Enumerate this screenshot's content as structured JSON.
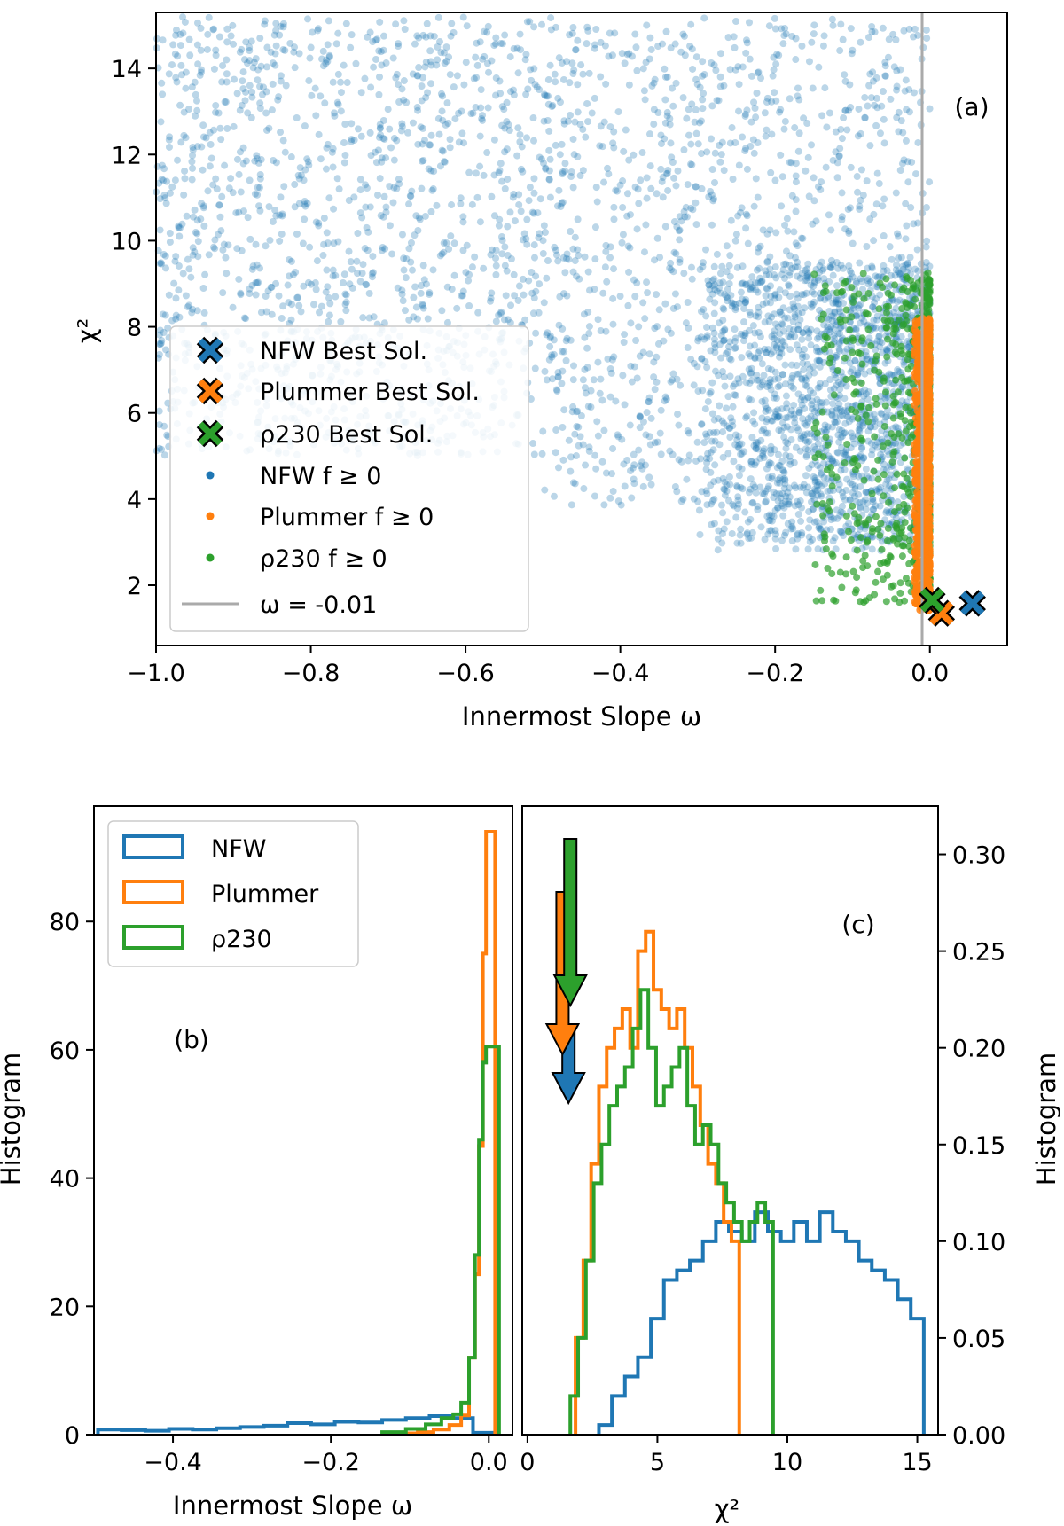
{
  "chart_data": [
    {
      "id": "a",
      "type": "scatter",
      "panel_label": "(a)",
      "xlabel": "Innermost Slope ω",
      "ylabel": "χ²",
      "xlim": [
        -1.0,
        0.1
      ],
      "ylim": [
        0.6,
        15.3
      ],
      "xticks": [
        -1.0,
        -0.8,
        -0.6,
        -0.4,
        -0.2,
        0.0
      ],
      "xtick_labels": [
        "−1.0",
        "−0.8",
        "−0.6",
        "−0.4",
        "−0.2",
        "0.0"
      ],
      "yticks": [
        2,
        4,
        6,
        8,
        10,
        12,
        14
      ],
      "ytick_labels": [
        "2",
        "4",
        "6",
        "8",
        "10",
        "12",
        "14"
      ],
      "vline": {
        "x": -0.01,
        "label": "ω = -0.01",
        "color": "#aaaaaa"
      },
      "best_solutions": [
        {
          "name": "NFW Best Sol.",
          "x": 0.055,
          "y": 1.58,
          "color": "#1f77b4"
        },
        {
          "name": "Plummer Best Sol.",
          "x": 0.015,
          "y": 1.35,
          "color": "#ff7f0e"
        },
        {
          "name": "ρ230 Best Sol.",
          "x": 0.003,
          "y": 1.65,
          "color": "#2ca02c"
        }
      ],
      "scatter_series": [
        {
          "name": "NFW f ≥ 0",
          "color": "#1f77b4",
          "x_range": [
            -1.0,
            0.0
          ],
          "chi2_range": [
            2.8,
            15.2
          ],
          "density": "uniform at large χ², concentrated near ω≈-0.1 for χ²<9"
        },
        {
          "name": "Plummer f ≥ 0",
          "color": "#ff7f0e",
          "x_range": [
            -0.02,
            0.0
          ],
          "chi2_range": [
            1.4,
            8.2
          ]
        },
        {
          "name": "ρ230 f ≥ 0",
          "color": "#2ca02c",
          "x_range": [
            -0.15,
            0.0
          ],
          "chi2_range": [
            1.6,
            9.3
          ]
        }
      ],
      "legend": [
        "NFW Best Sol.",
        "Plummer Best Sol.",
        "ρ230 Best Sol.",
        "NFW f ≥ 0",
        "Plummer f ≥ 0",
        "ρ230 f ≥ 0",
        "ω = -0.01"
      ],
      "legend_position": "lower-left"
    },
    {
      "id": "b",
      "type": "histogram",
      "panel_label": "(b)",
      "xlabel": "Innermost Slope ω",
      "ylabel": "Histogram",
      "xlim": [
        -0.5,
        0.03
      ],
      "ylim": [
        0,
        98
      ],
      "xticks": [
        -0.4,
        -0.2,
        0.0
      ],
      "xtick_labels": [
        "−0.4",
        "−0.2",
        "0.0"
      ],
      "yticks": [
        0,
        20,
        40,
        60,
        80
      ],
      "ytick_labels": [
        "0",
        "20",
        "40",
        "60",
        "80"
      ],
      "legend_position": "upper-left",
      "series": [
        {
          "name": "NFW",
          "color": "#1f77b4",
          "bin_centers": [
            -0.48,
            -0.45,
            -0.42,
            -0.39,
            -0.36,
            -0.33,
            -0.3,
            -0.27,
            -0.24,
            -0.21,
            -0.18,
            -0.15,
            -0.12,
            -0.09,
            -0.06,
            -0.03,
            -0.01
          ],
          "values": [
            0.8,
            0.7,
            0.6,
            0.9,
            0.8,
            1.0,
            1.2,
            1.4,
            1.8,
            1.6,
            2.0,
            1.9,
            2.3,
            2.6,
            2.9,
            2.6,
            0.3
          ]
        },
        {
          "name": "Plummer",
          "color": "#ff7f0e",
          "bin_centers": [
            -0.1,
            -0.08,
            -0.06,
            -0.04,
            -0.03,
            -0.02,
            -0.015,
            -0.01,
            -0.005,
            -0.002
          ],
          "values": [
            0.2,
            0.4,
            0.8,
            1.5,
            3,
            12,
            25,
            45,
            75,
            94
          ]
        },
        {
          "name": "ρ230",
          "color": "#2ca02c",
          "bin_centers": [
            -0.12,
            -0.09,
            -0.07,
            -0.05,
            -0.04,
            -0.03,
            -0.02,
            -0.015,
            -0.01,
            -0.005,
            -0.002
          ],
          "values": [
            0.4,
            0.9,
            1.6,
            2.6,
            3.2,
            5,
            12,
            28,
            46,
            58,
            60.5
          ]
        }
      ]
    },
    {
      "id": "c",
      "type": "histogram",
      "panel_label": "(c)",
      "xlabel": "χ²",
      "ylabel": "Histogram",
      "xlim": [
        -0.2,
        15.8
      ],
      "ylim": [
        0,
        0.325
      ],
      "xticks": [
        0,
        5,
        10,
        15
      ],
      "xtick_labels": [
        "0",
        "5",
        "10",
        "15"
      ],
      "yticks": [
        0.0,
        0.05,
        0.1,
        0.15,
        0.2,
        0.25,
        0.3
      ],
      "ytick_labels": [
        "0.00",
        "0.05",
        "0.10",
        "0.15",
        "0.20",
        "0.25",
        "0.30"
      ],
      "y_axis_side": "right",
      "series": [
        {
          "name": "NFW",
          "color": "#1f77b4",
          "bin_centers": [
            3.0,
            3.5,
            4.0,
            4.5,
            5.0,
            5.5,
            6.0,
            6.5,
            7.0,
            7.5,
            8.0,
            8.5,
            9.0,
            9.5,
            10.0,
            10.5,
            11.0,
            11.5,
            12.0,
            12.5,
            13.0,
            13.5,
            14.0,
            14.5,
            15.0
          ],
          "values": [
            0.005,
            0.02,
            0.03,
            0.04,
            0.06,
            0.08,
            0.085,
            0.09,
            0.1,
            0.11,
            0.105,
            0.1,
            0.115,
            0.105,
            0.1,
            0.11,
            0.1,
            0.115,
            0.105,
            0.1,
            0.09,
            0.085,
            0.08,
            0.07,
            0.06
          ]
        },
        {
          "name": "Plummer",
          "color": "#ff7f0e",
          "bin_centers": [
            2.0,
            2.3,
            2.6,
            2.9,
            3.2,
            3.5,
            3.8,
            4.1,
            4.4,
            4.7,
            5.0,
            5.3,
            5.6,
            5.9,
            6.2,
            6.5,
            6.8,
            7.1,
            7.4,
            7.7,
            8.0
          ],
          "values": [
            0.05,
            0.09,
            0.14,
            0.18,
            0.2,
            0.21,
            0.22,
            0.2,
            0.25,
            0.26,
            0.23,
            0.22,
            0.21,
            0.22,
            0.2,
            0.18,
            0.16,
            0.14,
            0.13,
            0.11,
            0.1
          ]
        },
        {
          "name": "ρ230",
          "color": "#2ca02c",
          "bin_centers": [
            1.8,
            2.1,
            2.4,
            2.7,
            3.0,
            3.3,
            3.6,
            3.9,
            4.2,
            4.5,
            4.8,
            5.1,
            5.4,
            5.7,
            6.0,
            6.3,
            6.6,
            6.9,
            7.2,
            7.5,
            7.8,
            8.1,
            8.4,
            8.7,
            9.0,
            9.3
          ],
          "values": [
            0.02,
            0.05,
            0.09,
            0.13,
            0.15,
            0.17,
            0.18,
            0.19,
            0.21,
            0.23,
            0.2,
            0.17,
            0.18,
            0.19,
            0.2,
            0.17,
            0.15,
            0.16,
            0.15,
            0.13,
            0.12,
            0.11,
            0.1,
            0.11,
            0.12,
            0.11
          ]
        }
      ],
      "best_solution_arrows": [
        {
          "name": "NFW",
          "x": 1.58,
          "color": "#1f77b4"
        },
        {
          "name": "Plummer",
          "x": 1.35,
          "color": "#ff7f0e"
        },
        {
          "name": "ρ230",
          "x": 1.65,
          "color": "#2ca02c"
        }
      ]
    }
  ]
}
